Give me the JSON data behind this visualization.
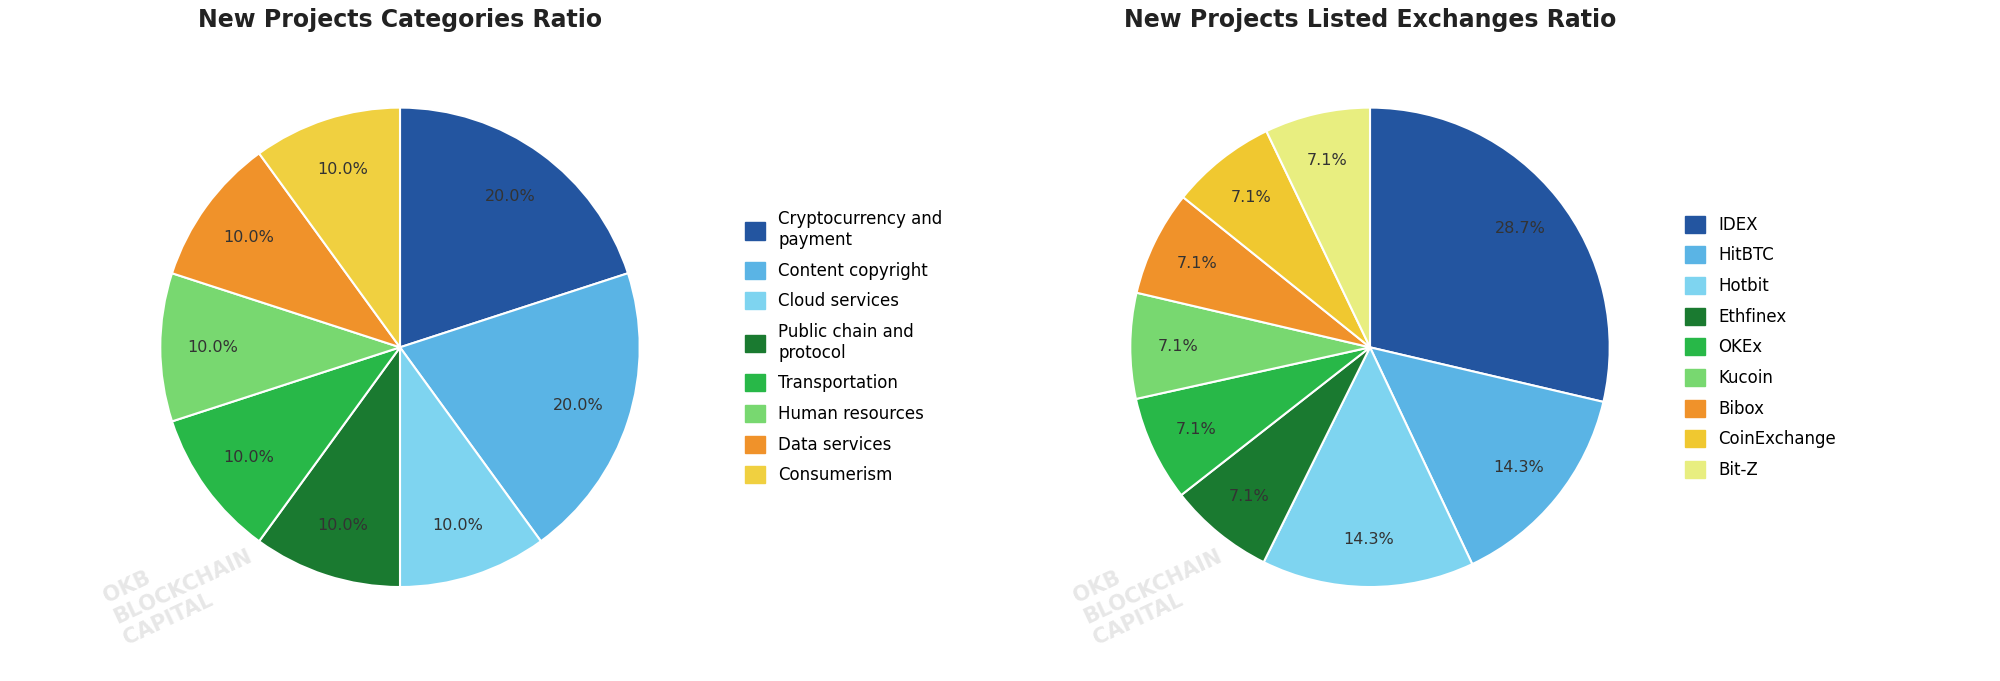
{
  "chart1_title": "New Projects Categories Ratio",
  "chart1_values": [
    20.0,
    20.0,
    10.0,
    10.0,
    10.0,
    10.0,
    10.0,
    10.0
  ],
  "chart1_colors": [
    "#2355a0",
    "#5ab4e5",
    "#7ed4f0",
    "#1a7a30",
    "#28b848",
    "#78d870",
    "#f0922a",
    "#f0d040"
  ],
  "chart1_legend_labels": [
    "Cryptocurrency and\npayment",
    "Content copyright",
    "Cloud services",
    "Public chain and\nprotocol",
    "Transportation",
    "Human resources",
    "Data services",
    "Consumerism"
  ],
  "chart1_startangle": 90,
  "chart2_title": "New Projects Listed Exchanges Ratio",
  "chart2_values": [
    28.6,
    14.3,
    14.3,
    7.1,
    7.1,
    7.1,
    7.1,
    7.1,
    7.1
  ],
  "chart2_colors": [
    "#2355a0",
    "#5ab4e5",
    "#7ed4f0",
    "#1a7a30",
    "#28b848",
    "#78d870",
    "#f0922a",
    "#f0c830",
    "#e8ee80"
  ],
  "chart2_legend_labels": [
    "IDEX",
    "HitBTC",
    "Hotbit",
    "Ethfinex",
    "OKEx",
    "Kucoin",
    "Bibox",
    "CoinExchange",
    "Bit-Z"
  ],
  "chart2_startangle": 90,
  "bg_color": "#ffffff",
  "title_fontsize": 17,
  "label_fontsize": 11.5,
  "legend_fontsize": 12
}
